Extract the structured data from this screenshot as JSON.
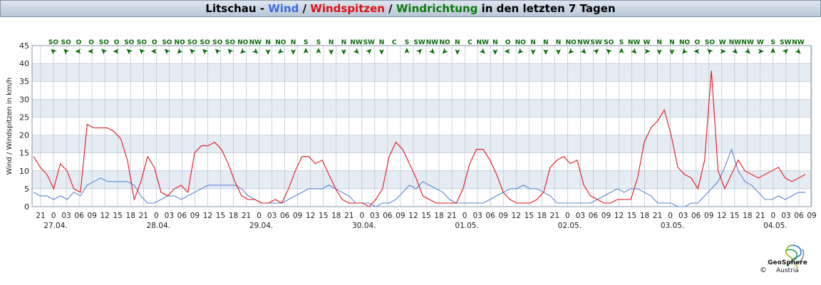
{
  "title": {
    "station": "Litschau",
    "sep1": " - ",
    "wind": "Wind",
    "sep2": " / ",
    "gust": "Windspitzen",
    "sep3": " / ",
    "dir": "Windrichtung",
    "suffix": " in den letzten 7 Tagen"
  },
  "colors": {
    "wind": "#5b84d6",
    "gust": "#e8141c",
    "direction": "#0a6a0a",
    "band": "#e6ecf3",
    "grid": "#b7c3d2"
  },
  "chart_data": {
    "type": "line",
    "ylabel": "Wind / Windspitzen in km/h",
    "ylim": [
      0,
      45
    ],
    "yticks": [
      0,
      5,
      10,
      15,
      20,
      25,
      30,
      35,
      40,
      45
    ],
    "hour_labels": [
      "21",
      "0",
      "03",
      "06",
      "09",
      "12",
      "15",
      "18",
      "21",
      "0",
      "03",
      "06",
      "09",
      "12",
      "15",
      "18",
      "21",
      "0",
      "03",
      "06",
      "09",
      "12",
      "15",
      "18",
      "21",
      "0",
      "03",
      "06",
      "09",
      "12",
      "15",
      "18",
      "21",
      "0",
      "03",
      "06",
      "09",
      "12",
      "15",
      "18",
      "21",
      "0",
      "03",
      "06",
      "09",
      "12",
      "15",
      "18",
      "21",
      "0",
      "03",
      "06",
      "09",
      "12",
      "15",
      "18",
      "21",
      "0",
      "03",
      "06",
      "09"
    ],
    "date_labels": [
      "27.04.",
      "28.04.",
      "29.04.",
      "30.04.",
      "01.05.",
      "02.05.",
      "03.05.",
      "04.05."
    ],
    "x_start_hour": 21,
    "x_step_hours": 3,
    "series": [
      {
        "name": "Wind",
        "values": [
          4,
          3,
          3,
          2,
          3,
          2,
          4,
          3,
          6,
          7,
          8,
          7,
          7,
          7,
          7,
          6,
          3,
          1,
          1,
          2,
          3,
          3,
          2,
          3,
          4,
          5,
          6,
          6,
          6,
          6,
          6,
          5,
          3,
          2,
          1,
          1,
          1,
          1,
          2,
          3,
          4,
          5,
          5,
          5,
          6,
          5,
          4,
          3,
          1,
          1,
          1,
          0,
          1,
          1,
          2,
          4,
          6,
          5,
          7,
          6,
          5,
          4,
          2,
          1,
          1,
          1,
          1,
          1,
          2,
          3,
          4,
          5,
          5,
          6,
          5,
          5,
          4,
          3,
          1,
          1,
          1,
          1,
          1,
          1,
          2,
          3,
          4,
          5,
          4,
          5,
          5,
          4,
          3,
          1,
          1,
          1,
          0,
          0,
          1,
          1,
          3,
          5,
          7,
          11,
          16,
          10,
          7,
          6,
          4,
          2,
          2,
          3,
          2,
          3,
          4,
          4
        ]
      },
      {
        "name": "Windspitzen",
        "values": [
          14,
          11,
          9,
          5,
          12,
          10,
          5,
          4,
          23,
          22,
          22,
          22,
          21,
          19,
          13,
          2,
          7,
          14,
          11,
          4,
          3,
          5,
          6,
          4,
          15,
          17,
          17,
          18,
          16,
          12,
          7,
          3,
          2,
          2,
          1,
          1,
          2,
          1,
          5,
          10,
          14,
          14,
          12,
          13,
          9,
          5,
          2,
          1,
          1,
          1,
          0,
          2,
          5,
          14,
          18,
          16,
          12,
          8,
          3,
          2,
          1,
          1,
          1,
          1,
          5,
          12,
          16,
          16,
          13,
          9,
          4,
          2,
          1,
          1,
          1,
          2,
          4,
          11,
          13,
          14,
          12,
          13,
          6,
          3,
          2,
          1,
          1,
          2,
          2,
          2,
          8,
          18,
          22,
          24,
          27,
          20,
          11,
          9,
          8,
          5,
          13,
          38,
          10,
          5,
          9,
          13,
          10,
          9,
          8,
          9,
          10,
          11,
          8,
          7,
          8,
          9
        ]
      }
    ],
    "direction_labels": [
      "SO",
      "SO",
      "O",
      "O",
      "SO",
      "O",
      "SO",
      "SO",
      "O",
      "SO",
      "NO",
      "SO",
      "SO",
      "SO",
      "SO",
      "NO",
      "NW",
      "N",
      "NO",
      "N",
      "S",
      "S",
      "N",
      "N",
      "NW",
      "SW",
      "N",
      "C",
      "S",
      "SW",
      "NW",
      "NO",
      "N",
      "C",
      "NW",
      "N",
      "O",
      "NO",
      "N",
      "N",
      "N",
      "NO",
      "NW",
      "SW",
      "SO",
      "S",
      "NW",
      "W",
      "N",
      "N",
      "NO",
      "O",
      "SO",
      "W",
      "NW",
      "NW",
      "W",
      "S",
      "SW",
      "NW"
    ],
    "grid": true,
    "band_fill": true
  },
  "logo": {
    "name": "GeoSphere",
    "sub": "Austria",
    "copyright": "©"
  }
}
